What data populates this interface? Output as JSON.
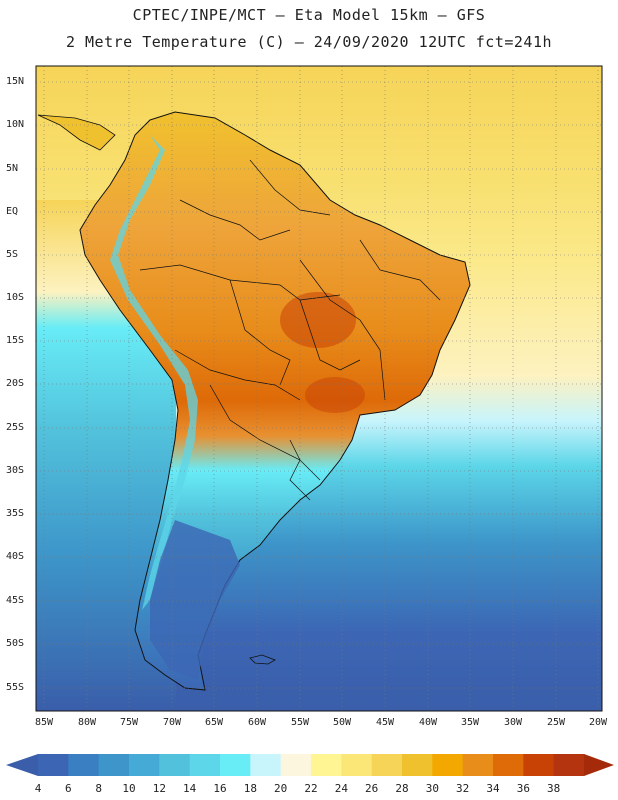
{
  "header": {
    "line1": "CPTEC/INPE/MCT –  Eta Model 15km – GFS",
    "line2": "2 Metre Temperature (C) – 24/09/2020 12UTC fct=241h"
  },
  "map": {
    "lat_labels": [
      "15N",
      "10N",
      "5N",
      "EQ",
      "5S",
      "10S",
      "15S",
      "20S",
      "25S",
      "30S",
      "35S",
      "40S",
      "45S",
      "50S",
      "55S"
    ],
    "lon_labels": [
      "85W",
      "80W",
      "75W",
      "70W",
      "65W",
      "60W",
      "55W",
      "50W",
      "45W",
      "40W",
      "35W",
      "30W",
      "25W",
      "20W"
    ],
    "grid": true,
    "region": "South America"
  },
  "colorbar": {
    "labels": [
      "4",
      "6",
      "8",
      "10",
      "12",
      "14",
      "16",
      "18",
      "20",
      "22",
      "24",
      "26",
      "28",
      "30",
      "32",
      "34",
      "36",
      "38"
    ],
    "colors": [
      "#3c66b4",
      "#3a7fc2",
      "#3d95c9",
      "#45aad6",
      "#52c2dc",
      "#5cd6e8",
      "#68ecf6",
      "#c8f4fc",
      "#fdf6de",
      "#fff592",
      "#fbe778",
      "#f6d458",
      "#f0c12e",
      "#f2a800",
      "#e88c1a",
      "#de6a08",
      "#c84206",
      "#b43410"
    ]
  }
}
